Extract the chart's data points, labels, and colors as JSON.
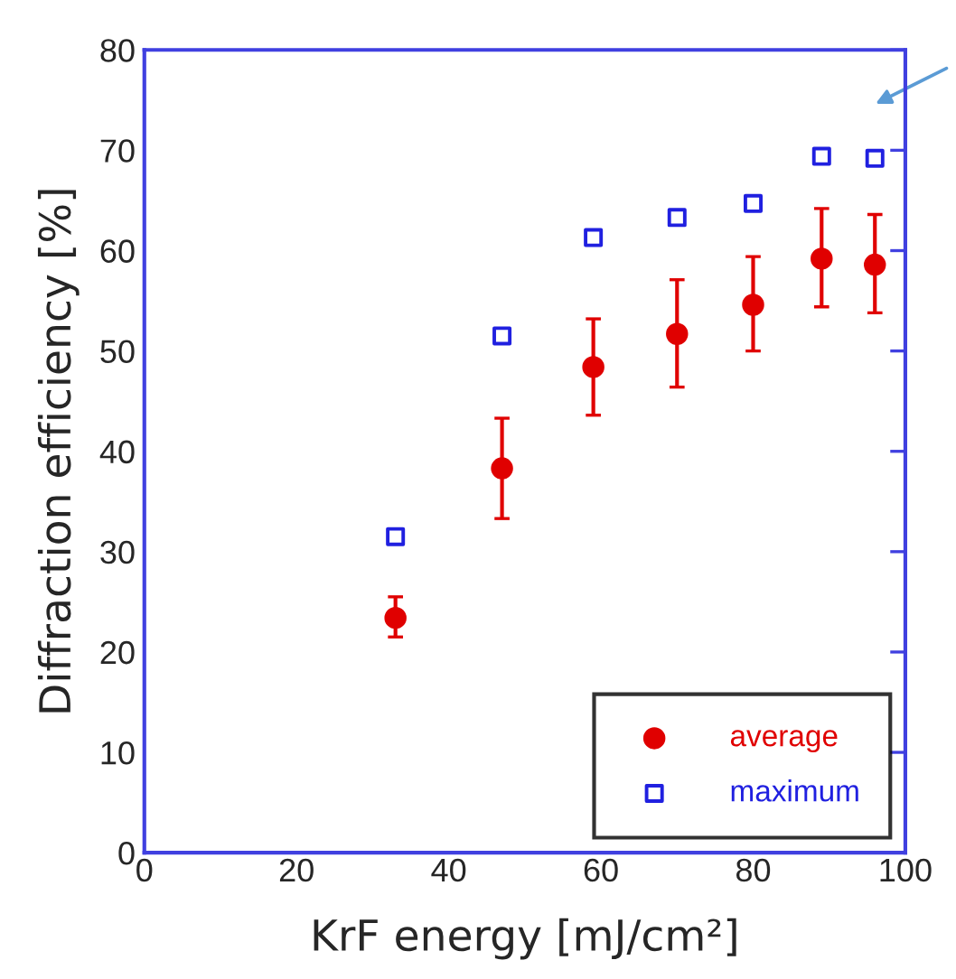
{
  "chart_data": {
    "type": "scatter",
    "xlabel": "KrF energy [mJ/cm²]",
    "ylabel": "Diffraction efficiency [%]",
    "x": [
      33,
      47,
      59,
      70,
      80,
      89,
      96
    ],
    "series": [
      {
        "name": "average",
        "color": "#e00000",
        "marker": "circle",
        "values": [
          23.4,
          38.3,
          48.4,
          51.7,
          54.6,
          59.2,
          58.6
        ],
        "errors": [
          [
            21.5,
            25.5
          ],
          [
            33.3,
            43.3
          ],
          [
            43.6,
            53.2
          ],
          [
            46.4,
            57.1
          ],
          [
            50.0,
            59.4
          ],
          [
            54.4,
            64.2
          ],
          [
            53.8,
            63.6
          ]
        ]
      },
      {
        "name": "maximum",
        "color": "#2020e0",
        "marker": "square",
        "values": [
          31.5,
          51.5,
          61.3,
          63.3,
          64.7,
          69.4,
          69.2
        ]
      }
    ],
    "xlim": [
      0,
      100
    ],
    "ylim": [
      0,
      80
    ],
    "xticks": [
      0,
      20,
      40,
      60,
      80,
      100
    ],
    "yticks": [
      0,
      10,
      20,
      30,
      40,
      50,
      60,
      70,
      80
    ],
    "grid": false,
    "legend": "bottom right"
  }
}
